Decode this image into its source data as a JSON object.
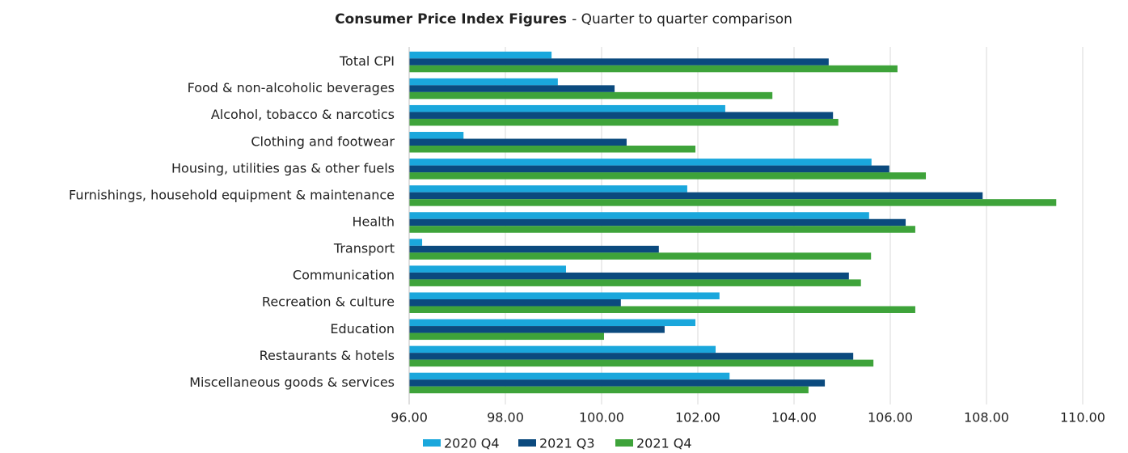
{
  "chart_data": {
    "type": "hbar",
    "title": "Consumer Price Index Figures",
    "subtitle": "- Quarter to quarter comparison",
    "categories": [
      "Total CPI",
      "Food & non-alcoholic beverages",
      "Alcohol, tobacco & narcotics",
      "Clothing and footwear",
      "Housing, utilities gas & other fuels",
      "Furnishings, household equipment & maintenance",
      "Health",
      "Transport",
      "Communication",
      "Recreation & culture",
      "Education",
      "Restaurants & hotels",
      "Miscellaneous goods & services"
    ],
    "series": [
      {
        "name": "2020 Q4",
        "color": "#1aa7dc",
        "values": [
          98.96,
          99.09,
          102.57,
          97.13,
          105.61,
          101.78,
          105.56,
          96.27,
          99.26,
          102.45,
          101.95,
          102.37,
          102.66
        ]
      },
      {
        "name": "2021 Q3",
        "color": "#0b4a7e",
        "values": [
          104.72,
          100.27,
          104.81,
          100.52,
          105.98,
          107.92,
          106.32,
          101.19,
          105.14,
          100.4,
          101.31,
          105.23,
          104.64
        ]
      },
      {
        "name": "2021 Q4",
        "color": "#3ea33a",
        "values": [
          106.15,
          103.55,
          104.92,
          101.95,
          106.74,
          109.45,
          106.52,
          105.6,
          105.39,
          106.52,
          100.05,
          105.65,
          104.3
        ]
      }
    ],
    "xlim": [
      96,
      110
    ],
    "xticks": [
      {
        "value": 96,
        "label": "96.00"
      },
      {
        "value": 98,
        "label": "98.00"
      },
      {
        "value": 100,
        "label": "100.00"
      },
      {
        "value": 102,
        "label": "102.00"
      },
      {
        "value": 104,
        "label": "104.00"
      },
      {
        "value": 106,
        "label": "106.00"
      },
      {
        "value": 108,
        "label": "108.00"
      },
      {
        "value": 110,
        "label": "110.00"
      }
    ],
    "grid": true,
    "legend": "bottom"
  }
}
